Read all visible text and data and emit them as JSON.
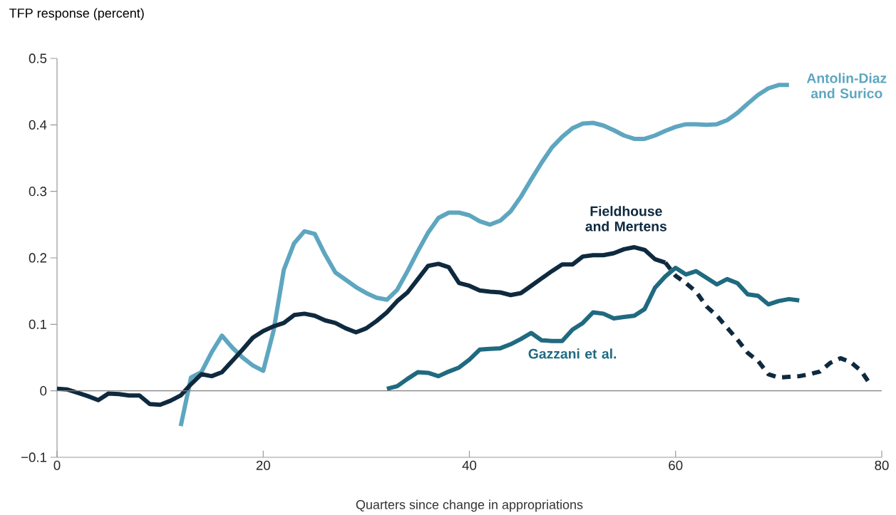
{
  "chart_data": {
    "type": "line",
    "ylabel": "TFP response (percent)",
    "xlabel": "Quarters since change in appropriations",
    "xlim": [
      0,
      80
    ],
    "ylim": [
      -0.1,
      0.5
    ],
    "xticks": [
      0,
      20,
      40,
      60,
      80
    ],
    "yticks": [
      {
        "value": -0.1,
        "label": "−0.1"
      },
      0,
      0.1,
      0.2,
      0.3,
      0.4,
      0.5
    ],
    "ref_lines": [
      {
        "axis": "y",
        "value": 0,
        "color": "#7f7f7f"
      }
    ],
    "series": [
      {
        "name": "Antolin-Diaz and Surico",
        "color": "#5ea6c0",
        "line_style": "solid",
        "x": [
          12,
          13,
          14,
          15,
          16,
          17,
          18,
          19,
          20,
          21,
          22,
          23,
          24,
          25,
          26,
          27,
          28,
          29,
          30,
          31,
          32,
          33,
          34,
          35,
          36,
          37,
          38,
          39,
          40,
          41,
          42,
          43,
          44,
          45,
          46,
          47,
          48,
          49,
          50,
          51,
          52,
          53,
          54,
          55,
          56,
          57,
          58,
          59,
          60,
          61,
          62,
          63,
          64,
          65,
          66,
          67,
          68,
          69,
          70,
          71
        ],
        "values": [
          -0.053,
          0.02,
          0.028,
          0.058,
          0.083,
          0.065,
          0.05,
          0.038,
          0.03,
          0.09,
          0.182,
          0.222,
          0.24,
          0.236,
          0.205,
          0.178,
          0.167,
          0.156,
          0.147,
          0.14,
          0.137,
          0.152,
          0.18,
          0.21,
          0.238,
          0.26,
          0.268,
          0.268,
          0.264,
          0.255,
          0.25,
          0.256,
          0.27,
          0.292,
          0.318,
          0.343,
          0.366,
          0.382,
          0.395,
          0.402,
          0.403,
          0.399,
          0.392,
          0.384,
          0.379,
          0.379,
          0.384,
          0.391,
          0.397,
          0.401,
          0.401,
          0.4,
          0.401,
          0.407,
          0.418,
          0.432,
          0.445,
          0.455,
          0.46,
          0.46
        ]
      },
      {
        "name": "Fieldhouse and Mertens",
        "color": "#0f2a3f",
        "line_style": "solid",
        "x": [
          0,
          1,
          2,
          3,
          4,
          5,
          6,
          7,
          8,
          9,
          10,
          11,
          12,
          13,
          14,
          15,
          16,
          17,
          18,
          19,
          20,
          21,
          22,
          23,
          24,
          25,
          26,
          27,
          28,
          29,
          30,
          31,
          32,
          33,
          34,
          35,
          36,
          37,
          38,
          39,
          40,
          41,
          42,
          43,
          44,
          45,
          46,
          47,
          48,
          49,
          50,
          51,
          52,
          53,
          54,
          55,
          56,
          57,
          58,
          59
        ],
        "values": [
          0.003,
          0.002,
          -0.003,
          -0.008,
          -0.014,
          -0.004,
          -0.005,
          -0.007,
          -0.007,
          -0.02,
          -0.021,
          -0.015,
          -0.007,
          0.01,
          0.025,
          0.022,
          0.028,
          0.045,
          0.062,
          0.08,
          0.09,
          0.097,
          0.102,
          0.114,
          0.116,
          0.113,
          0.106,
          0.102,
          0.094,
          0.088,
          0.094,
          0.105,
          0.118,
          0.135,
          0.148,
          0.168,
          0.188,
          0.191,
          0.186,
          0.162,
          0.158,
          0.151,
          0.149,
          0.148,
          0.144,
          0.147,
          0.158,
          0.169,
          0.18,
          0.19,
          0.19,
          0.202,
          0.204,
          0.204,
          0.207,
          0.213,
          0.216,
          0.212,
          0.198,
          0.193
        ]
      },
      {
        "color": "#0f2a3f",
        "line_style": "dashed",
        "x": [
          59,
          60,
          61,
          62,
          63,
          64,
          65,
          66,
          67,
          68,
          69,
          70,
          71,
          72,
          73,
          74,
          75,
          76,
          77,
          78,
          79
        ],
        "values": [
          0.193,
          0.173,
          0.162,
          0.149,
          0.127,
          0.113,
          0.095,
          0.077,
          0.057,
          0.045,
          0.025,
          0.02,
          0.021,
          0.022,
          0.025,
          0.029,
          0.042,
          0.049,
          0.043,
          0.03,
          0.007
        ]
      },
      {
        "name": "Gazzani et al.",
        "color": "#1f6a80",
        "line_style": "solid",
        "x": [
          32,
          33,
          34,
          35,
          36,
          37,
          38,
          39,
          40,
          41,
          42,
          43,
          44,
          45,
          46,
          47,
          48,
          49,
          50,
          51,
          52,
          53,
          54,
          55,
          56,
          57,
          58,
          59,
          60,
          61,
          62,
          63,
          64,
          65,
          66,
          67,
          68,
          69,
          70,
          71,
          72
        ],
        "values": [
          0.003,
          0.007,
          0.018,
          0.028,
          0.027,
          0.022,
          0.029,
          0.035,
          0.047,
          0.062,
          0.063,
          0.064,
          0.07,
          0.078,
          0.087,
          0.076,
          0.075,
          0.075,
          0.092,
          0.102,
          0.118,
          0.116,
          0.109,
          0.111,
          0.113,
          0.123,
          0.155,
          0.172,
          0.185,
          0.175,
          0.18,
          0.17,
          0.16,
          0.168,
          0.162,
          0.145,
          0.143,
          0.13,
          0.135,
          0.138,
          0.136
        ]
      }
    ]
  }
}
